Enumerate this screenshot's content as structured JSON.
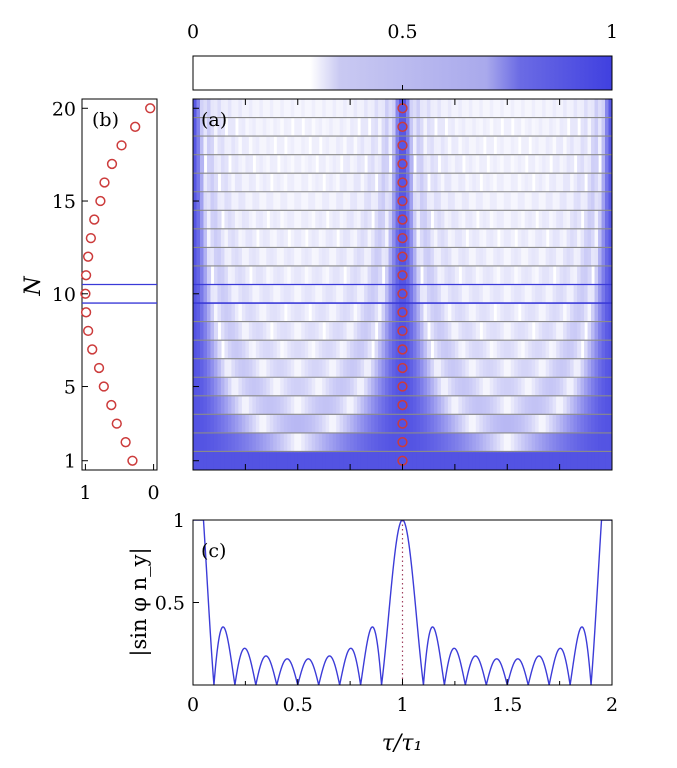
{
  "colorbar": {
    "ticks": [
      {
        "v": 0,
        "label": "0"
      },
      {
        "v": 0.5,
        "label": "0.5"
      },
      {
        "v": 1,
        "label": "1"
      }
    ],
    "color_low": "#ffffff",
    "color_high": "#4040e0"
  },
  "chart_data": [
    {
      "panel": "a",
      "label": "(a)",
      "type": "heatmap",
      "xlim": [
        0,
        2
      ],
      "ylim": [
        0.5,
        20.5
      ],
      "rows": [
        1,
        2,
        3,
        4,
        5,
        6,
        7,
        8,
        9,
        10,
        11,
        12,
        13,
        14,
        15,
        16,
        17,
        18,
        19,
        20
      ],
      "markers": {
        "x": [
          1,
          1,
          1,
          1,
          1,
          1,
          1,
          1,
          1,
          1,
          1,
          1,
          1,
          1,
          1,
          1,
          1,
          1,
          1,
          1
        ],
        "y": [
          1,
          2,
          3,
          4,
          5,
          6,
          7,
          8,
          9,
          10,
          11,
          12,
          13,
          14,
          15,
          16,
          17,
          18,
          19,
          20
        ]
      },
      "highlight_row": 10,
      "value_range": [
        0,
        1
      ],
      "peak_x": 1
    },
    {
      "panel": "b",
      "label": "(b)",
      "type": "scatter",
      "xticks": [
        {
          "v": 1,
          "label": "1"
        },
        {
          "v": 0,
          "label": "0"
        }
      ],
      "xlim": [
        1.05,
        -0.05
      ],
      "yticks": [
        {
          "v": 1,
          "label": "1"
        },
        {
          "v": 5,
          "label": "5"
        },
        {
          "v": 10,
          "label": "10"
        },
        {
          "v": 15,
          "label": "15"
        },
        {
          "v": 20,
          "label": "20"
        }
      ],
      "ylabel": "N",
      "ylim": [
        0.5,
        20.5
      ],
      "y": [
        1,
        2,
        3,
        4,
        5,
        6,
        7,
        8,
        9,
        10,
        11,
        12,
        13,
        14,
        15,
        16,
        17,
        18,
        19,
        20
      ],
      "x": [
        0.31,
        0.41,
        0.54,
        0.62,
        0.73,
        0.8,
        0.9,
        0.96,
        0.99,
        1.0,
        0.99,
        0.96,
        0.92,
        0.87,
        0.78,
        0.72,
        0.61,
        0.47,
        0.27,
        0.05
      ],
      "highlight_row": 10
    },
    {
      "panel": "c",
      "label": "(c)",
      "type": "line",
      "xlabel": "τ/τ₁",
      "ylabel": "|sin φ n_y|",
      "xlim": [
        0,
        2
      ],
      "ylim": [
        0,
        1
      ],
      "xticks": [
        {
          "v": 0,
          "label": "0"
        },
        {
          "v": 0.5,
          "label": "0.5"
        },
        {
          "v": 1,
          "label": "1"
        },
        {
          "v": 1.5,
          "label": "1.5"
        },
        {
          "v": 2,
          "label": "2"
        }
      ],
      "yticks": [
        {
          "v": 0.5,
          "label": "0.5"
        },
        {
          "v": 1,
          "label": "1"
        }
      ],
      "N": 10,
      "vline_x": 1,
      "side_lobe_peak": 0.34
    }
  ]
}
